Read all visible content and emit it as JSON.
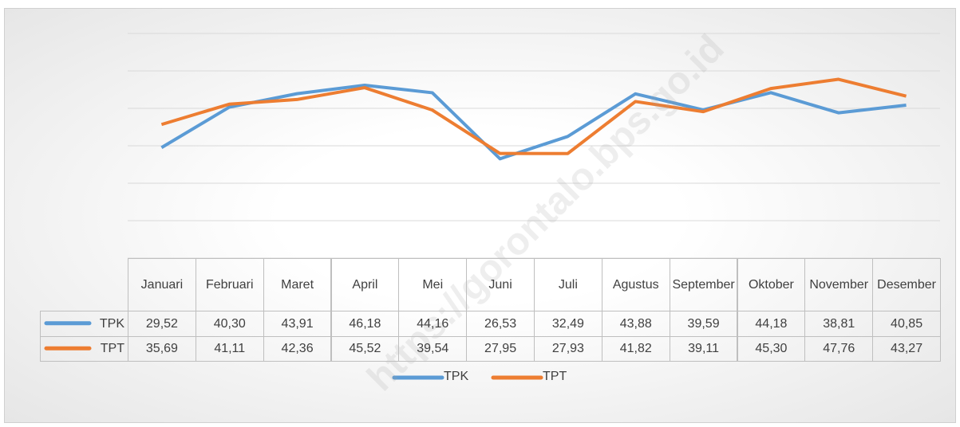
{
  "chart_data": {
    "type": "line",
    "categories": [
      "Januari",
      "Februari",
      "Maret",
      "April",
      "Mei",
      "Juni",
      "Juli",
      "Agustus",
      "September",
      "Oktober",
      "November",
      "Desember"
    ],
    "series": [
      {
        "name": "TPK",
        "color": "#5b9bd5",
        "values": [
          29.52,
          40.3,
          43.91,
          46.18,
          44.16,
          26.53,
          32.49,
          43.88,
          39.59,
          44.18,
          38.81,
          40.85
        ],
        "value_labels": [
          "29,52",
          "40,30",
          "43,91",
          "46,18",
          "44,16",
          "26,53",
          "32,49",
          "43,88",
          "39,59",
          "44,18",
          "38,81",
          "40,85"
        ]
      },
      {
        "name": "TPT",
        "color": "#ed7d31",
        "values": [
          35.69,
          41.11,
          42.36,
          45.52,
          39.54,
          27.95,
          27.93,
          41.82,
          39.11,
          45.3,
          47.76,
          43.27
        ],
        "value_labels": [
          "35,69",
          "41,11",
          "42,36",
          "45,52",
          "39,54",
          "27,95",
          "27,93",
          "41,82",
          "39,11",
          "45,30",
          "47,76",
          "43,27"
        ]
      }
    ],
    "ylim": [
      0,
      60
    ],
    "yticks": [
      0,
      10,
      20,
      30,
      40,
      50,
      60
    ],
    "grid": true,
    "legend": "bottom",
    "watermark": "https://gorontalo.bps.go.id"
  }
}
